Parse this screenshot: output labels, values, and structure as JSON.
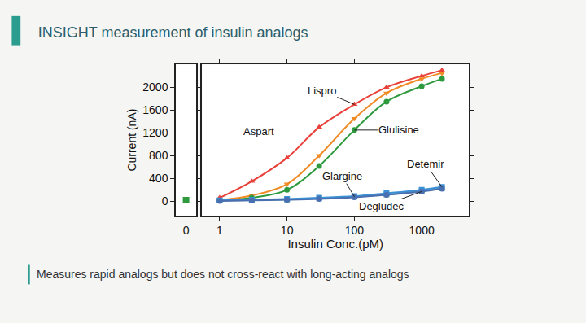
{
  "chart_data": [
    {
      "type": "scatter",
      "y_label": "Current (nA)",
      "x": [
        0
      ],
      "series": [
        {
          "color": "#2e9a3e",
          "marker": "square",
          "values": [
            20
          ]
        }
      ],
      "xlim": [
        -1,
        1
      ],
      "xticks": [
        0
      ],
      "ylim": [
        -250,
        2400
      ],
      "yticks": [
        0,
        400,
        800,
        1200,
        1600,
        2000
      ],
      "grid": false
    },
    {
      "type": "line",
      "title": "INSIGHT measurement of insulin analogs",
      "x_label": "Insulin Conc.(pM)",
      "annotations": [
        "Measures rapid analogs but does not cross-react with long-acting analogs"
      ],
      "log": "x",
      "x": [
        1,
        3,
        10,
        30,
        100,
        300,
        1000,
        2000
      ],
      "series": [
        {
          "name": "Lispro",
          "color": "#e8413a",
          "marker": "triangle-up",
          "values": [
            60,
            350,
            760,
            1300,
            1700,
            2000,
            2200,
            2300
          ]
        },
        {
          "name": "Aspart",
          "color": "#f08a24",
          "marker": "triangle-down",
          "values": [
            20,
            100,
            300,
            800,
            1450,
            1900,
            2150,
            2250
          ]
        },
        {
          "name": "Glulisine",
          "color": "#2e9a3e",
          "marker": "circle",
          "values": [
            10,
            60,
            200,
            620,
            1250,
            1750,
            2020,
            2150
          ]
        },
        {
          "name": "Glargine",
          "color": "#5f9ea0",
          "marker": "square",
          "values": [
            10,
            20,
            30,
            50,
            80,
            120,
            180,
            230
          ]
        },
        {
          "name": "Detemir",
          "color": "#3a8fd6",
          "marker": "square",
          "values": [
            15,
            25,
            40,
            60,
            90,
            140,
            200,
            250
          ]
        },
        {
          "name": "Degludec",
          "color": "#4a6fb0",
          "marker": "circle",
          "values": [
            5,
            15,
            25,
            40,
            70,
            110,
            170,
            220
          ]
        }
      ],
      "xlim": [
        0.55,
        5000
      ],
      "xticks": [
        1,
        10,
        100,
        1000
      ],
      "ylim": [
        -250,
        2400
      ],
      "yticks": [
        0,
        400,
        800,
        1200,
        1600,
        2000
      ],
      "tick_labels": "x",
      "grid": false
    }
  ]
}
